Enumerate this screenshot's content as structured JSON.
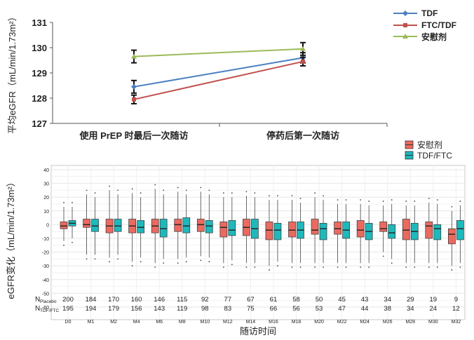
{
  "chart_data": [
    {
      "type": "line",
      "ylabel": "平均eGFR（mL/min/1.73m²）",
      "ylim": [
        127,
        131
      ],
      "yticks": [
        "127",
        "128",
        "129",
        "130",
        "131"
      ],
      "categories": [
        "使用 PrEP 时最后一次随访",
        "停药后第一次随访"
      ],
      "legend_position": "top-right",
      "series": [
        {
          "name": "TDF",
          "color": "#4a7fc1",
          "marker": "diamond",
          "values": [
            128.45,
            129.6
          ],
          "err": [
            0.25,
            0.2
          ]
        },
        {
          "name": "FTC/TDF",
          "color": "#c0504d",
          "marker": "square",
          "values": [
            127.95,
            129.45
          ],
          "err": [
            0.17,
            0.17
          ]
        },
        {
          "name": "安慰剂",
          "color": "#9bbb59",
          "marker": "triangle",
          "values": [
            129.65,
            129.95
          ],
          "err": [
            0.25,
            0.25
          ]
        }
      ]
    },
    {
      "type": "box",
      "ylabel": "eGFR变化（mL/min/1.73m²）",
      "xlabel": "随访时间",
      "ylim": [
        -60,
        40
      ],
      "yticks": [
        "40",
        "30",
        "20",
        "10",
        "0",
        "-10",
        "-20",
        "-30",
        "-40",
        "-50",
        "-60"
      ],
      "legend_position": "top-right",
      "categories": [
        "D0",
        "M1",
        "M2",
        "M4",
        "M6",
        "M8",
        "M10",
        "M12",
        "M14",
        "M16",
        "M18",
        "M20",
        "M22",
        "M24",
        "M26",
        "M28",
        "M30",
        "M32"
      ],
      "series": [
        {
          "name": "安慰剂",
          "color": "#ea6a60",
          "q1": [
            -3,
            -2,
            -6,
            -6,
            -6,
            -5,
            -5,
            -9,
            -8,
            -11,
            -9,
            -7,
            -7,
            -9,
            -5,
            -11,
            -10,
            -14
          ],
          "med": [
            -1,
            0,
            -1,
            -1,
            -1,
            0,
            0,
            -2,
            -2,
            -4,
            -4,
            -4,
            -3,
            -4,
            -3,
            -4,
            -1,
            -7
          ],
          "q3": [
            2,
            4,
            4,
            4,
            4,
            4,
            4,
            2,
            4,
            2,
            2,
            4,
            2,
            3,
            2,
            4,
            2,
            -3
          ],
          "wlo": [
            -12,
            -22,
            -24,
            -27,
            -28,
            -25,
            -23,
            -28,
            -28,
            -30,
            -28,
            -28,
            -28,
            -28,
            -20,
            -28,
            -28,
            -30
          ],
          "whi": [
            13,
            22,
            25,
            23,
            26,
            24,
            24,
            20,
            21,
            18,
            18,
            20,
            15,
            15,
            14,
            14,
            16,
            10
          ]
        },
        {
          "name": "TDF/FTC",
          "color": "#1fb8bb",
          "q1": [
            -1,
            -5,
            -5,
            -6,
            -9,
            -6,
            -6,
            -8,
            -10,
            -11,
            -10,
            -11,
            -10,
            -11,
            -10,
            -11,
            -11,
            -11
          ],
          "med": [
            1,
            -1,
            -1,
            -2,
            -3,
            -1,
            -1,
            -4,
            -3,
            -4,
            -4,
            -3,
            -4,
            -5,
            -6,
            -5,
            -3,
            -3
          ],
          "q3": [
            3,
            4,
            4,
            3,
            4,
            5,
            3,
            3,
            4,
            1,
            2,
            1,
            2,
            1,
            0,
            1,
            0,
            3
          ],
          "wlo": [
            -10,
            -22,
            -22,
            -24,
            -25,
            -24,
            -24,
            -26,
            -28,
            -27,
            -28,
            -28,
            -28,
            -28,
            -25,
            -28,
            -28,
            -28
          ],
          "whi": [
            13,
            20,
            22,
            20,
            22,
            22,
            22,
            20,
            20,
            18,
            16,
            18,
            15,
            14,
            15,
            14,
            15,
            14
          ]
        }
      ],
      "counts": [
        {
          "label_main": "N",
          "label_sub": "Placebo",
          "values": [
            "200",
            "184",
            "170",
            "160",
            "146",
            "115",
            "92",
            "77",
            "67",
            "61",
            "58",
            "50",
            "45",
            "43",
            "34",
            "29",
            "19",
            "9"
          ]
        },
        {
          "label_main": "N",
          "label_sub": "TDF/FTC",
          "values": [
            "195",
            "194",
            "179",
            "156",
            "143",
            "119",
            "98",
            "83",
            "75",
            "66",
            "56",
            "53",
            "47",
            "44",
            "38",
            "34",
            "24",
            "12"
          ]
        }
      ]
    }
  ]
}
